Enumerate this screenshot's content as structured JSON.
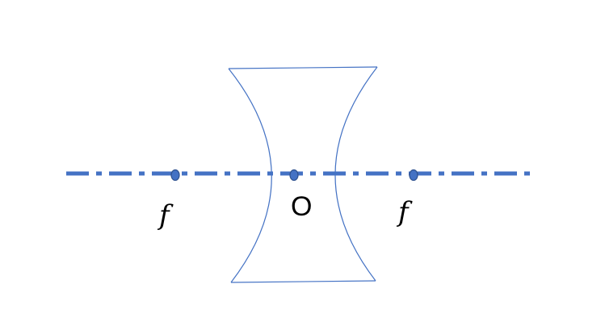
{
  "diagram": {
    "type": "concave-lens",
    "colors": {
      "axis": "#4472c4",
      "lens_outline": "#4472c4",
      "points": "#4472c4",
      "labels": "#000000"
    },
    "labels": {
      "left_focus": "f",
      "center": "O",
      "right_focus": "f"
    }
  }
}
